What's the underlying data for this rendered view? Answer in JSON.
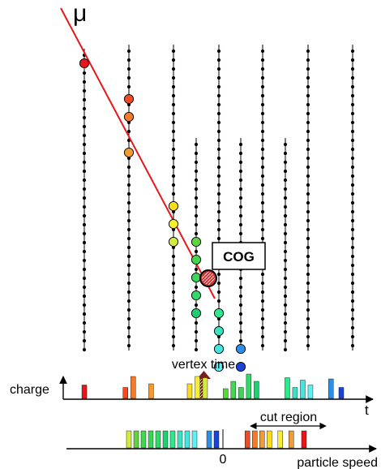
{
  "labels": {
    "mu": "μ",
    "cog": "COG",
    "vertex_time": "vertex time",
    "charge": "charge",
    "t": "t",
    "cut_region": "cut region",
    "zero": "0",
    "particle_speed": "particle speed"
  },
  "colors": {
    "track": "#e8161b",
    "string_line": "#000000",
    "cog_fill": "#cc3333",
    "vertex_arrow": "#7a1c1c"
  },
  "strings": [
    {
      "id": "s1",
      "hits": [
        {
          "slot": 0,
          "color": "#e8161b"
        }
      ]
    },
    {
      "id": "s2",
      "hits": [
        {
          "slot": 2,
          "color": "#ef4a23"
        },
        {
          "slot": 3,
          "color": "#f37b2b"
        },
        {
          "slot": 5,
          "color": "#f39a30"
        }
      ]
    },
    {
      "id": "s3",
      "hits": [
        {
          "slot": 8,
          "color": "#fbdc1d"
        },
        {
          "slot": 9,
          "color": "#f7ee2c"
        },
        {
          "slot": 10,
          "color": "#d4ea3e"
        }
      ]
    },
    {
      "id": "s4",
      "hits": [
        {
          "slot": 10,
          "color": "#5fd43e"
        },
        {
          "slot": 11,
          "color": "#41d84f"
        },
        {
          "slot": 12,
          "color": "#3ad757"
        },
        {
          "slot": 13,
          "color": "#33d76a"
        },
        {
          "slot": 14,
          "color": "#1fcf72"
        }
      ]
    },
    {
      "id": "s5",
      "hits": [
        {
          "slot": 14,
          "color": "#2ee88a"
        },
        {
          "slot": 15,
          "color": "#38e3c0"
        },
        {
          "slot": 16,
          "color": "#42e6e0"
        },
        {
          "slot": 17,
          "color": "#5ef0f5"
        }
      ]
    },
    {
      "id": "s6",
      "hits": [
        {
          "slot": 16,
          "color": "#2d8ee8"
        },
        {
          "slot": 17,
          "color": "#1c43d8"
        }
      ]
    },
    {
      "id": "s7",
      "hits": []
    },
    {
      "id": "s8",
      "hits": []
    },
    {
      "id": "s9",
      "hits": []
    },
    {
      "id": "s10",
      "hits": []
    }
  ],
  "charge_bars": [
    {
      "t": 0.0,
      "h": 0.55,
      "color": "#e8161b"
    },
    {
      "t": 0.16,
      "h": 0.45,
      "color": "#ef4a23"
    },
    {
      "t": 0.19,
      "h": 0.9,
      "color": "#f37b2b"
    },
    {
      "t": 0.26,
      "h": 0.6,
      "color": "#f39a30"
    },
    {
      "t": 0.41,
      "h": 0.6,
      "color": "#fbdc1d"
    },
    {
      "t": 0.44,
      "h": 0.9,
      "color": "#f7ee2c"
    },
    {
      "t": 0.47,
      "h": 0.85,
      "color": "#d4ea3e"
    },
    {
      "t": 0.55,
      "h": 0.4,
      "color": "#5fd43e"
    },
    {
      "t": 0.58,
      "h": 0.7,
      "color": "#41d84f"
    },
    {
      "t": 0.61,
      "h": 0.45,
      "color": "#3ad757"
    },
    {
      "t": 0.64,
      "h": 1.0,
      "color": "#33d76a"
    },
    {
      "t": 0.67,
      "h": 0.7,
      "color": "#1fcf72"
    },
    {
      "t": 0.79,
      "h": 0.85,
      "color": "#2ee88a"
    },
    {
      "t": 0.82,
      "h": 0.45,
      "color": "#38e3c0"
    },
    {
      "t": 0.85,
      "h": 0.75,
      "color": "#42e6e0"
    },
    {
      "t": 0.88,
      "h": 0.55,
      "color": "#5ef0f5"
    },
    {
      "t": 0.96,
      "h": 0.8,
      "color": "#2d8ee8"
    },
    {
      "t": 1.0,
      "h": 0.45,
      "color": "#1c43d8"
    }
  ],
  "speed_bars": [
    {
      "v": 0.0,
      "color": "#d4ea3e"
    },
    {
      "v": 0.04,
      "color": "#5fd43e"
    },
    {
      "v": 0.08,
      "color": "#41d84f"
    },
    {
      "v": 0.12,
      "color": "#3ad757"
    },
    {
      "v": 0.16,
      "color": "#33d76a"
    },
    {
      "v": 0.2,
      "color": "#1fcf72"
    },
    {
      "v": 0.24,
      "color": "#2ee88a"
    },
    {
      "v": 0.28,
      "color": "#38e3c0"
    },
    {
      "v": 0.32,
      "color": "#42e6e0"
    },
    {
      "v": 0.36,
      "color": "#5ef0f5"
    },
    {
      "v": 0.44,
      "color": "#2d8ee8"
    },
    {
      "v": 0.48,
      "color": "#1c43d8"
    },
    {
      "v": 0.65,
      "color": "#ef4a23"
    },
    {
      "v": 0.69,
      "color": "#f37b2b"
    },
    {
      "v": 0.73,
      "color": "#f39a30"
    },
    {
      "v": 0.77,
      "color": "#fbdc1d"
    },
    {
      "v": 0.83,
      "color": "#f7ee2c"
    },
    {
      "v": 0.89,
      "color": "#f39a30"
    },
    {
      "v": 0.96,
      "color": "#e8161b"
    }
  ]
}
